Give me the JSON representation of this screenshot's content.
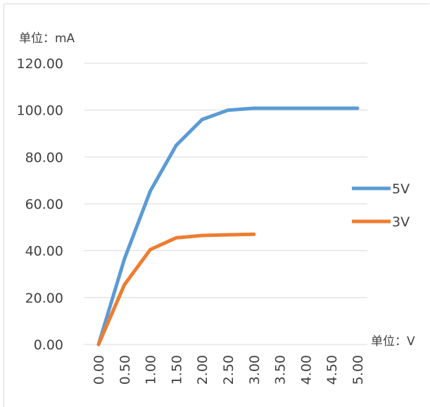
{
  "chart_data": {
    "type": "line",
    "y_unit_label": "单位：mA",
    "x_unit_label": "单位：V",
    "categories": [
      "0.00",
      "0.50",
      "1.00",
      "1.50",
      "2.00",
      "2.50",
      "3.00",
      "3.50",
      "4.00",
      "4.50",
      "5.00"
    ],
    "y_ticks": [
      "0.00",
      "20.00",
      "40.00",
      "60.00",
      "80.00",
      "100.00",
      "120.00"
    ],
    "ylim": [
      0,
      120
    ],
    "grid": true,
    "legend_position": "right",
    "series": [
      {
        "name": "5V",
        "color": "#5b9bd5",
        "values": [
          0,
          36.5,
          65.5,
          85,
          96,
          100,
          100.8,
          100.8,
          100.8,
          100.8,
          100.8
        ]
      },
      {
        "name": "3V",
        "color": "#ed7d31",
        "values": [
          0,
          25.5,
          40.5,
          45.5,
          46.5,
          46.8,
          47,
          null,
          null,
          null,
          null
        ]
      }
    ]
  }
}
